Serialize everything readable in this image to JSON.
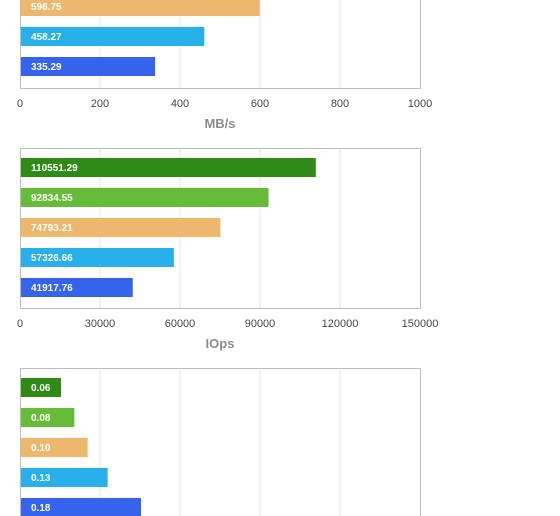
{
  "colors": {
    "series": [
      "#2f8a16",
      "#66bb39",
      "#edb86e",
      "#27b0ea",
      "#3563ec"
    ],
    "frame": "#bcbcbc",
    "grid": "#e6e6e6"
  },
  "chart_data": [
    {
      "type": "bar",
      "orientation": "horizontal",
      "values": [
        596.75,
        458.27,
        335.29
      ],
      "value_labels": [
        "596.75",
        "458.27",
        "335.29"
      ],
      "colors": [
        "#edb86e",
        "#27b0ea",
        "#3563ec"
      ],
      "xticks": [
        "0",
        "200",
        "400",
        "600",
        "800",
        "1000"
      ],
      "xlim": [
        0,
        1000
      ],
      "xlabel": "MB/s",
      "grid": true
    },
    {
      "type": "bar",
      "orientation": "horizontal",
      "values": [
        110551.29,
        92834.55,
        74793.21,
        57326.66,
        41917.76
      ],
      "value_labels": [
        "110551.29",
        "92834.55",
        "74793.21",
        "57326.66",
        "41917.76"
      ],
      "colors": [
        "#2f8a16",
        "#66bb39",
        "#edb86e",
        "#27b0ea",
        "#3563ec"
      ],
      "xticks": [
        "0",
        "30000",
        "60000",
        "90000",
        "120000",
        "150000"
      ],
      "xlim": [
        0,
        150000
      ],
      "xlabel": "IOps",
      "grid": true
    },
    {
      "type": "bar",
      "orientation": "horizontal",
      "values": [
        0.06,
        0.08,
        0.1,
        0.13,
        0.18
      ],
      "value_labels": [
        "0.06",
        "0.08",
        "0.10",
        "0.13",
        "0.18"
      ],
      "colors": [
        "#2f8a16",
        "#66bb39",
        "#edb86e",
        "#27b0ea",
        "#3563ec"
      ],
      "xlim": [
        0,
        0.6
      ],
      "grid": true
    }
  ]
}
